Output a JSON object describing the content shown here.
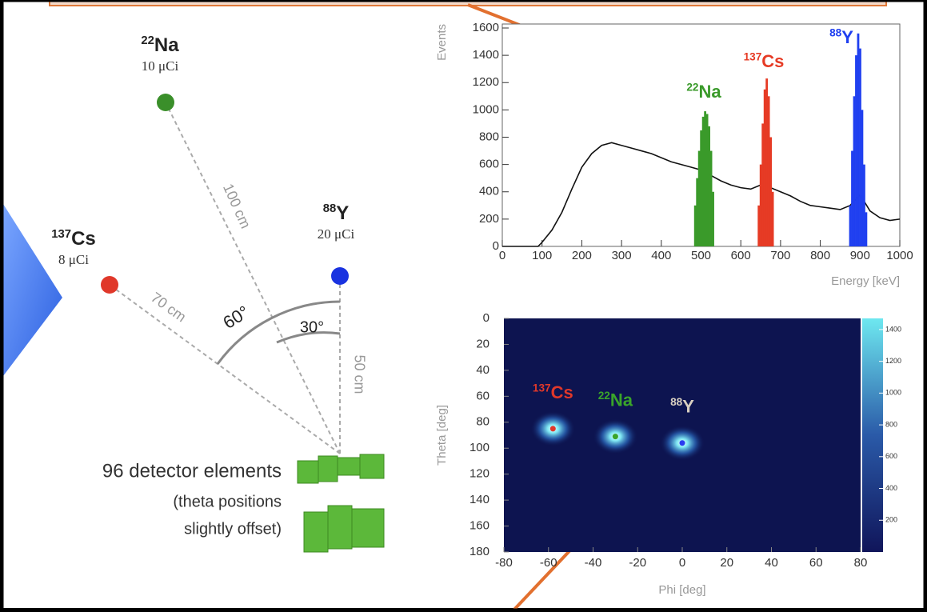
{
  "diagram": {
    "sources": [
      {
        "mass": "22",
        "element": "Na",
        "activity": "10 μCi",
        "color": "#3a8f2a",
        "distance": "100 cm"
      },
      {
        "mass": "137",
        "element": "Cs",
        "activity": "8 μCi",
        "color": "#e0382a",
        "distance": "70 cm"
      },
      {
        "mass": "88",
        "element": "Y",
        "activity": "20 μCi",
        "color": "#1a33e0",
        "distance": "50 cm"
      }
    ],
    "angles": [
      "60°",
      "30°"
    ],
    "detector_label": [
      "96 detector elements",
      "(theta positions",
      "slightly offset)"
    ]
  },
  "chart_data": [
    {
      "type": "histogram",
      "ylabel": "Events",
      "xlabel": "Energy [keV]",
      "xlim": [
        0,
        1000
      ],
      "ylim": [
        0,
        1600
      ],
      "xticks": [
        0,
        100,
        200,
        300,
        400,
        500,
        600,
        700,
        800,
        900,
        1000
      ],
      "yticks": [
        0,
        200,
        400,
        600,
        800,
        1000,
        1200,
        1400,
        1600
      ],
      "background": {
        "color": "#111111",
        "x": [
          0,
          50,
          90,
          100,
          125,
          150,
          175,
          200,
          225,
          250,
          275,
          300,
          325,
          350,
          375,
          400,
          425,
          450,
          475,
          500,
          525,
          550,
          575,
          600,
          625,
          650,
          675,
          700,
          725,
          750,
          775,
          800,
          825,
          850,
          875,
          900,
          925,
          950,
          975,
          1000
        ],
        "values": [
          0,
          0,
          0,
          30,
          120,
          250,
          420,
          580,
          680,
          740,
          760,
          740,
          720,
          700,
          680,
          650,
          620,
          600,
          580,
          560,
          520,
          480,
          450,
          430,
          420,
          450,
          430,
          400,
          370,
          330,
          300,
          290,
          280,
          270,
          300,
          380,
          260,
          210,
          190,
          200
        ]
      },
      "series": [
        {
          "mass": "22",
          "name": "Na",
          "color": "#3a9a2a",
          "x": [
            485,
            490,
            495,
            500,
            505,
            510,
            515,
            520,
            525,
            530
          ],
          "values": [
            300,
            500,
            700,
            850,
            950,
            990,
            970,
            880,
            700,
            400
          ]
        },
        {
          "mass": "137",
          "name": "Cs",
          "color": "#e63b25",
          "x": [
            645,
            650,
            655,
            660,
            665,
            670,
            675,
            680
          ],
          "values": [
            300,
            600,
            900,
            1150,
            1230,
            1100,
            800,
            400
          ]
        },
        {
          "mass": "88",
          "name": "Y",
          "color": "#1f3ff0",
          "x": [
            875,
            880,
            885,
            890,
            895,
            900,
            905,
            910,
            915
          ],
          "values": [
            300,
            700,
            1100,
            1400,
            1560,
            1450,
            1000,
            600,
            250
          ]
        }
      ]
    },
    {
      "type": "heatmap",
      "xlabel": "Phi [deg]",
      "ylabel": "Theta [deg]",
      "xlim": [
        -80,
        80
      ],
      "ylim": [
        180,
        0
      ],
      "xticks": [
        -80,
        -60,
        -40,
        -20,
        0,
        20,
        40,
        60,
        80
      ],
      "yticks": [
        0,
        20,
        40,
        60,
        80,
        100,
        120,
        140,
        160,
        180
      ],
      "zlim": [
        0,
        1470
      ],
      "zticks": [
        200,
        400,
        600,
        800,
        1000,
        1200,
        1400
      ],
      "spots": [
        {
          "mass": "137",
          "name": "Cs",
          "label_color": "#e0382a",
          "color": "#e0382a",
          "x": -58,
          "y": 85
        },
        {
          "mass": "22",
          "name": "Na",
          "label_color": "#3aa52a",
          "color": "#3aa52a",
          "x": -30,
          "y": 91
        },
        {
          "mass": "88",
          "name": "Y",
          "label_color": "#d8cfc0",
          "color": "#2a3cf0",
          "x": 0,
          "y": 96
        }
      ]
    }
  ]
}
